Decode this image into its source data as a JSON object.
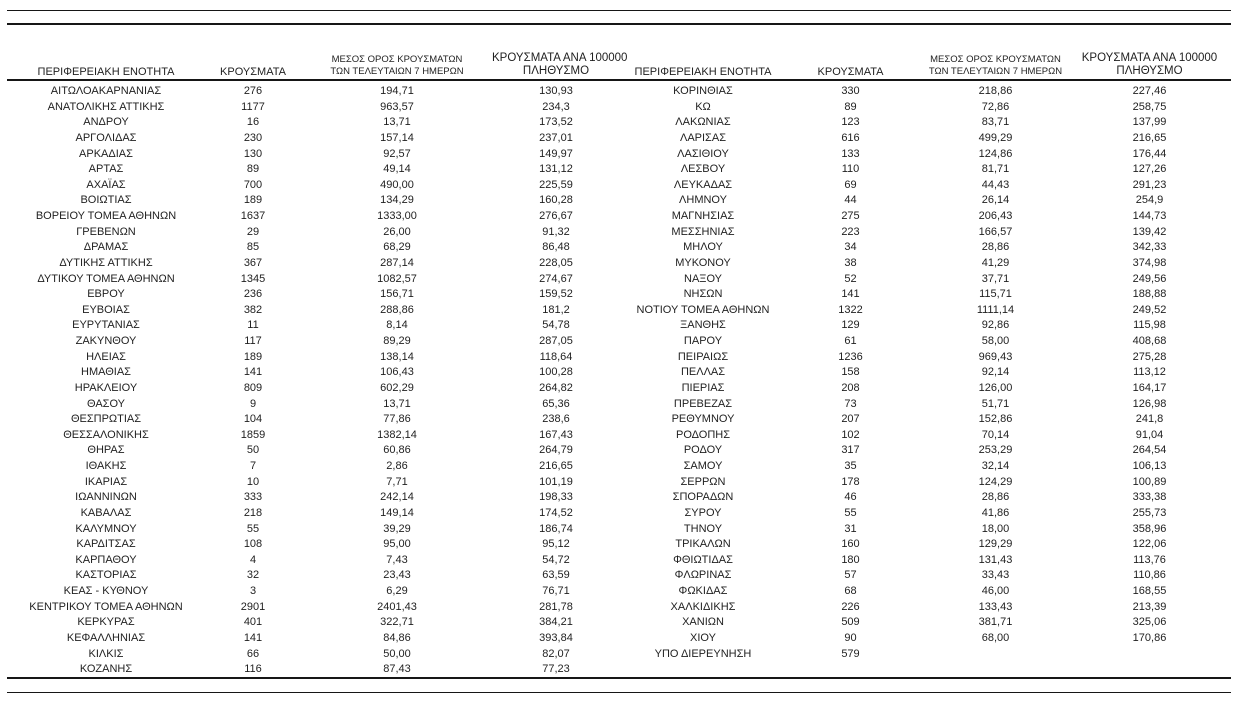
{
  "page": {
    "background_color": "#ffffff",
    "text_color": "#1f1f1f",
    "line_color": "#161616"
  },
  "headers": {
    "region": "ΠΕΡΙΦΕΡΕΙΑΚΗ ΕΝΟΤΗΤΑ",
    "cases": "ΚΡΟΥΣΜΑΤΑ",
    "avg7_line1": "ΜΕΣΟΣ ΟΡΟΣ ΚΡΟΥΣΜΑΤΩΝ",
    "avg7_line2": "ΤΩΝ ΤΕΛΕΥΤΑΙΩΝ 7 ΗΜΕΡΩΝ",
    "per100k_line1": "ΚΡΟΥΣΜΑΤΑ ΑΝΑ 100000",
    "per100k_line2": "ΠΛΗΘΥΣΜΟ"
  },
  "left_rows": [
    [
      "ΑΙΤΩΛΟΑΚΑΡΝΑΝΙΑΣ",
      "276",
      "194,71",
      "130,93"
    ],
    [
      "ΑΝΑΤΟΛΙΚΗΣ ΑΤΤΙΚΗΣ",
      "1177",
      "963,57",
      "234,3"
    ],
    [
      "ΑΝΔΡΟΥ",
      "16",
      "13,71",
      "173,52"
    ],
    [
      "ΑΡΓΟΛΙΔΑΣ",
      "230",
      "157,14",
      "237,01"
    ],
    [
      "ΑΡΚΑΔΙΑΣ",
      "130",
      "92,57",
      "149,97"
    ],
    [
      "ΑΡΤΑΣ",
      "89",
      "49,14",
      "131,12"
    ],
    [
      "ΑΧΑΪΑΣ",
      "700",
      "490,00",
      "225,59"
    ],
    [
      "ΒΟΙΩΤΙΑΣ",
      "189",
      "134,29",
      "160,28"
    ],
    [
      "ΒΟΡΕΙΟΥ ΤΟΜΕΑ ΑΘΗΝΩΝ",
      "1637",
      "1333,00",
      "276,67"
    ],
    [
      "ΓΡΕΒΕΝΩΝ",
      "29",
      "26,00",
      "91,32"
    ],
    [
      "ΔΡΑΜΑΣ",
      "85",
      "68,29",
      "86,48"
    ],
    [
      "ΔΥΤΙΚΗΣ ΑΤΤΙΚΗΣ",
      "367",
      "287,14",
      "228,05"
    ],
    [
      "ΔΥΤΙΚΟΥ ΤΟΜΕΑ ΑΘΗΝΩΝ",
      "1345",
      "1082,57",
      "274,67"
    ],
    [
      "ΕΒΡΟΥ",
      "236",
      "156,71",
      "159,52"
    ],
    [
      "ΕΥΒΟΙΑΣ",
      "382",
      "288,86",
      "181,2"
    ],
    [
      "ΕΥΡΥΤΑΝΙΑΣ",
      "11",
      "8,14",
      "54,78"
    ],
    [
      "ΖΑΚΥΝΘΟΥ",
      "117",
      "89,29",
      "287,05"
    ],
    [
      "ΗΛΕΙΑΣ",
      "189",
      "138,14",
      "118,64"
    ],
    [
      "ΗΜΑΘΙΑΣ",
      "141",
      "106,43",
      "100,28"
    ],
    [
      "ΗΡΑΚΛΕΙΟΥ",
      "809",
      "602,29",
      "264,82"
    ],
    [
      "ΘΑΣΟΥ",
      "9",
      "13,71",
      "65,36"
    ],
    [
      "ΘΕΣΠΡΩΤΙΑΣ",
      "104",
      "77,86",
      "238,6"
    ],
    [
      "ΘΕΣΣΑΛΟΝΙΚΗΣ",
      "1859",
      "1382,14",
      "167,43"
    ],
    [
      "ΘΗΡΑΣ",
      "50",
      "60,86",
      "264,79"
    ],
    [
      "ΙΘΑΚΗΣ",
      "7",
      "2,86",
      "216,65"
    ],
    [
      "ΙΚΑΡΙΑΣ",
      "10",
      "7,71",
      "101,19"
    ],
    [
      "ΙΩΑΝΝΙΝΩΝ",
      "333",
      "242,14",
      "198,33"
    ],
    [
      "ΚΑΒΑΛΑΣ",
      "218",
      "149,14",
      "174,52"
    ],
    [
      "ΚΑΛΥΜΝΟΥ",
      "55",
      "39,29",
      "186,74"
    ],
    [
      "ΚΑΡΔΙΤΣΑΣ",
      "108",
      "95,00",
      "95,12"
    ],
    [
      "ΚΑΡΠΑΘΟΥ",
      "4",
      "7,43",
      "54,72"
    ],
    [
      "ΚΑΣΤΟΡΙΑΣ",
      "32",
      "23,43",
      "63,59"
    ],
    [
      "ΚΕΑΣ - ΚΥΘΝΟΥ",
      "3",
      "6,29",
      "76,71"
    ],
    [
      "ΚΕΝΤΡΙΚΟΥ ΤΟΜΕΑ ΑΘΗΝΩΝ",
      "2901",
      "2401,43",
      "281,78"
    ],
    [
      "ΚΕΡΚΥΡΑΣ",
      "401",
      "322,71",
      "384,21"
    ],
    [
      "ΚΕΦΑΛΛΗΝΙΑΣ",
      "141",
      "84,86",
      "393,84"
    ],
    [
      "ΚΙΛΚΙΣ",
      "66",
      "50,00",
      "82,07"
    ],
    [
      "ΚΟΖΑΝΗΣ",
      "116",
      "87,43",
      "77,23"
    ]
  ],
  "right_rows": [
    [
      "ΚΟΡΙΝΘΙΑΣ",
      "330",
      "218,86",
      "227,46"
    ],
    [
      "ΚΩ",
      "89",
      "72,86",
      "258,75"
    ],
    [
      "ΛΑΚΩΝΙΑΣ",
      "123",
      "83,71",
      "137,99"
    ],
    [
      "ΛΑΡΙΣΑΣ",
      "616",
      "499,29",
      "216,65"
    ],
    [
      "ΛΑΣΙΘΙΟΥ",
      "133",
      "124,86",
      "176,44"
    ],
    [
      "ΛΕΣΒΟΥ",
      "110",
      "81,71",
      "127,26"
    ],
    [
      "ΛΕΥΚΑΔΑΣ",
      "69",
      "44,43",
      "291,23"
    ],
    [
      "ΛΗΜΝΟΥ",
      "44",
      "26,14",
      "254,9"
    ],
    [
      "ΜΑΓΝΗΣΙΑΣ",
      "275",
      "206,43",
      "144,73"
    ],
    [
      "ΜΕΣΣΗΝΙΑΣ",
      "223",
      "166,57",
      "139,42"
    ],
    [
      "ΜΗΛΟΥ",
      "34",
      "28,86",
      "342,33"
    ],
    [
      "ΜΥΚΟΝΟΥ",
      "38",
      "41,29",
      "374,98"
    ],
    [
      "ΝΑΞΟΥ",
      "52",
      "37,71",
      "249,56"
    ],
    [
      "ΝΗΣΩΝ",
      "141",
      "115,71",
      "188,88"
    ],
    [
      "ΝΟΤΙΟΥ ΤΟΜΕΑ ΑΘΗΝΩΝ",
      "1322",
      "1111,14",
      "249,52"
    ],
    [
      "ΞΑΝΘΗΣ",
      "129",
      "92,86",
      "115,98"
    ],
    [
      "ΠΑΡΟΥ",
      "61",
      "58,00",
      "408,68"
    ],
    [
      "ΠΕΙΡΑΙΩΣ",
      "1236",
      "969,43",
      "275,28"
    ],
    [
      "ΠΕΛΛΑΣ",
      "158",
      "92,14",
      "113,12"
    ],
    [
      "ΠΙΕΡΙΑΣ",
      "208",
      "126,00",
      "164,17"
    ],
    [
      "ΠΡΕΒΕΖΑΣ",
      "73",
      "51,71",
      "126,98"
    ],
    [
      "ΡΕΘΥΜΝΟΥ",
      "207",
      "152,86",
      "241,8"
    ],
    [
      "ΡΟΔΟΠΗΣ",
      "102",
      "70,14",
      "91,04"
    ],
    [
      "ΡΟΔΟΥ",
      "317",
      "253,29",
      "264,54"
    ],
    [
      "ΣΑΜΟΥ",
      "35",
      "32,14",
      "106,13"
    ],
    [
      "ΣΕΡΡΩΝ",
      "178",
      "124,29",
      "100,89"
    ],
    [
      "ΣΠΟΡΑΔΩΝ",
      "46",
      "28,86",
      "333,38"
    ],
    [
      "ΣΥΡΟΥ",
      "55",
      "41,86",
      "255,73"
    ],
    [
      "ΤΗΝΟΥ",
      "31",
      "18,00",
      "358,96"
    ],
    [
      "ΤΡΙΚΑΛΩΝ",
      "160",
      "129,29",
      "122,06"
    ],
    [
      "ΦΘΙΩΤΙΔΑΣ",
      "180",
      "131,43",
      "113,76"
    ],
    [
      "ΦΛΩΡΙΝΑΣ",
      "57",
      "33,43",
      "110,86"
    ],
    [
      "ΦΩΚΙΔΑΣ",
      "68",
      "46,00",
      "168,55"
    ],
    [
      "ΧΑΛΚΙΔΙΚΗΣ",
      "226",
      "133,43",
      "213,39"
    ],
    [
      "ΧΑΝΙΩΝ",
      "509",
      "381,71",
      "325,06"
    ],
    [
      "ΧΙΟΥ",
      "90",
      "68,00",
      "170,86"
    ],
    [
      "ΥΠΟ ΔΙΕΡΕΥΝΗΣΗ",
      "579",
      "",
      ""
    ]
  ]
}
